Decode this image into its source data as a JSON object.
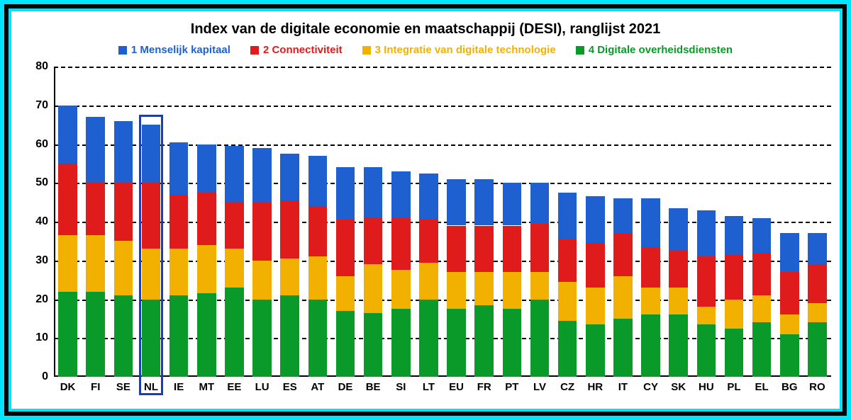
{
  "chart": {
    "type": "stacked-bar",
    "title": "Index van de digitale economie en maatschappij (DESI), ranglijst 2021",
    "title_fontsize": 20,
    "background_color": "#ffffff",
    "outer_border_color": "#00e5ff",
    "grid_color": "#000000",
    "axis_color": "#000000",
    "ylim": [
      0,
      80
    ],
    "ytick_step": 10,
    "yticks": [
      0,
      10,
      20,
      30,
      40,
      50,
      60,
      70,
      80
    ],
    "label_fontsize": 16,
    "xlabel_fontsize": 15,
    "bar_width_ratio": 0.68,
    "highlight": {
      "category": "NL",
      "color": "#1f3fa8"
    },
    "legend": {
      "fontsize": 15,
      "items": [
        {
          "label": "1 Menselijk kapitaal",
          "color": "#1f60d0"
        },
        {
          "label": "2 Connectiviteit",
          "color": "#e01b1b"
        },
        {
          "label": "3 Integratie van digitale technologie",
          "color": "#f2b100"
        },
        {
          "label": "4 Digitale overheidsdiensten",
          "color": "#0a9a2a"
        }
      ]
    },
    "stack_order_bottom_to_top": [
      "s4",
      "s3",
      "s2",
      "s1"
    ],
    "series_colors": {
      "s1": "#1f60d0",
      "s2": "#e01b1b",
      "s3": "#f2b100",
      "s4": "#0a9a2a"
    },
    "categories": [
      "DK",
      "FI",
      "SE",
      "NL",
      "IE",
      "MT",
      "EE",
      "LU",
      "ES",
      "AT",
      "DE",
      "BE",
      "SI",
      "LT",
      "EU",
      "FR",
      "PT",
      "LV",
      "CZ",
      "HR",
      "IT",
      "CY",
      "SK",
      "HU",
      "PL",
      "EL",
      "BG",
      "RO"
    ],
    "data": {
      "DK": {
        "s4": 22.0,
        "s3": 14.5,
        "s2": 18.5,
        "s1": 15.0
      },
      "FI": {
        "s4": 22.0,
        "s3": 14.5,
        "s2": 13.5,
        "s1": 17.0
      },
      "SE": {
        "s4": 21.0,
        "s3": 14.0,
        "s2": 15.0,
        "s1": 16.0
      },
      "NL": {
        "s4": 20.0,
        "s3": 13.0,
        "s2": 17.0,
        "s1": 15.0
      },
      "IE": {
        "s4": 21.0,
        "s3": 12.0,
        "s2": 14.0,
        "s1": 13.5
      },
      "MT": {
        "s4": 21.5,
        "s3": 12.5,
        "s2": 13.5,
        "s1": 12.5
      },
      "EE": {
        "s4": 23.0,
        "s3": 10.0,
        "s2": 12.0,
        "s1": 14.5
      },
      "LU": {
        "s4": 20.0,
        "s3": 10.0,
        "s2": 15.0,
        "s1": 14.0
      },
      "ES": {
        "s4": 21.0,
        "s3": 9.5,
        "s2": 15.0,
        "s1": 12.0
      },
      "AT": {
        "s4": 20.0,
        "s3": 11.0,
        "s2": 13.0,
        "s1": 13.0
      },
      "DE": {
        "s4": 17.0,
        "s3": 9.0,
        "s2": 14.5,
        "s1": 13.5
      },
      "BE": {
        "s4": 16.5,
        "s3": 12.5,
        "s2": 12.0,
        "s1": 13.0
      },
      "SI": {
        "s4": 17.5,
        "s3": 10.0,
        "s2": 13.5,
        "s1": 12.0
      },
      "LT": {
        "s4": 20.0,
        "s3": 9.5,
        "s2": 11.0,
        "s1": 12.0
      },
      "EU": {
        "s4": 17.5,
        "s3": 9.5,
        "s2": 12.0,
        "s1": 12.0
      },
      "FR": {
        "s4": 18.5,
        "s3": 8.5,
        "s2": 12.0,
        "s1": 12.0
      },
      "PT": {
        "s4": 17.5,
        "s3": 9.5,
        "s2": 12.0,
        "s1": 11.0
      },
      "LV": {
        "s4": 20.0,
        "s3": 7.0,
        "s2": 12.5,
        "s1": 10.5
      },
      "CZ": {
        "s4": 14.5,
        "s3": 10.0,
        "s2": 11.0,
        "s1": 12.0
      },
      "HR": {
        "s4": 13.5,
        "s3": 9.5,
        "s2": 11.5,
        "s1": 12.0
      },
      "IT": {
        "s4": 15.0,
        "s3": 11.0,
        "s2": 11.0,
        "s1": 9.0
      },
      "CY": {
        "s4": 16.0,
        "s3": 7.0,
        "s2": 10.5,
        "s1": 12.5
      },
      "SK": {
        "s4": 16.0,
        "s3": 7.0,
        "s2": 9.5,
        "s1": 11.0
      },
      "HU": {
        "s4": 13.5,
        "s3": 4.5,
        "s2": 13.0,
        "s1": 12.0
      },
      "PL": {
        "s4": 12.5,
        "s3": 7.5,
        "s2": 11.5,
        "s1": 10.0
      },
      "EL": {
        "s4": 14.0,
        "s3": 7.0,
        "s2": 11.0,
        "s1": 9.0
      },
      "BG": {
        "s4": 11.0,
        "s3": 5.0,
        "s2": 11.0,
        "s1": 10.0
      },
      "RO": {
        "s4": 14.0,
        "s3": 5.0,
        "s2": 10.0,
        "s1": 8.0
      }
    }
  }
}
